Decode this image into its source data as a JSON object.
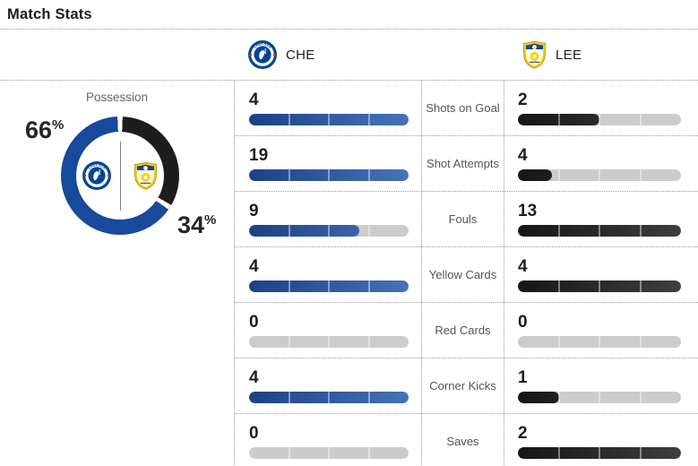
{
  "title": "Match Stats",
  "header": {
    "home": {
      "abbr": "CHE",
      "logo_icon": "chelsea-crest-icon"
    },
    "away": {
      "abbr": "LEE",
      "logo_icon": "leeds-crest-icon"
    }
  },
  "possession": {
    "title": "Possession",
    "home_pct": 66,
    "away_pct": 34,
    "pct_symbol": "%",
    "home_color": "#17499c",
    "away_color": "#1d1d1d"
  },
  "stats": {
    "rows": [
      {
        "label": "Shots on Goal",
        "home": 4,
        "away": 2
      },
      {
        "label": "Shot Attempts",
        "home": 19,
        "away": 4
      },
      {
        "label": "Fouls",
        "home": 9,
        "away": 13
      },
      {
        "label": "Yellow Cards",
        "home": 4,
        "away": 4
      },
      {
        "label": "Red Cards",
        "home": 0,
        "away": 0
      },
      {
        "label": "Corner Kicks",
        "home": 4,
        "away": 1
      },
      {
        "label": "Saves",
        "home": 0,
        "away": 2
      }
    ],
    "home_bar_colors": [
      "#1b4186",
      "#4673b8"
    ],
    "away_bar_colors": [
      "#161616",
      "#3e3e3e"
    ],
    "track_color": "#cccccc"
  },
  "chart_data": [
    {
      "type": "pie",
      "title": "Possession",
      "labels": [
        "CHE",
        "LEE"
      ],
      "values": [
        66,
        34
      ],
      "unit": "%",
      "colors": [
        "#17499c",
        "#1d1d1d"
      ],
      "style": "donut with team crests inside, labels outside ring"
    },
    {
      "type": "bar",
      "title": "Match Stats",
      "categories": [
        "Shots on Goal",
        "Shot Attempts",
        "Fouls",
        "Yellow Cards",
        "Red Cards",
        "Corner Kicks",
        "Saves"
      ],
      "series": [
        {
          "name": "CHE",
          "values": [
            4,
            19,
            9,
            4,
            0,
            4,
            0
          ],
          "color_gradient": [
            "#1b4186",
            "#4673b8"
          ]
        },
        {
          "name": "LEE",
          "values": [
            2,
            4,
            13,
            4,
            0,
            1,
            2
          ],
          "color_gradient": [
            "#161616",
            "#3e3e3e"
          ]
        }
      ],
      "layout": "paired horizontal pill bars per category, each bar scaled to the category max, 4 segment dividers"
    }
  ]
}
